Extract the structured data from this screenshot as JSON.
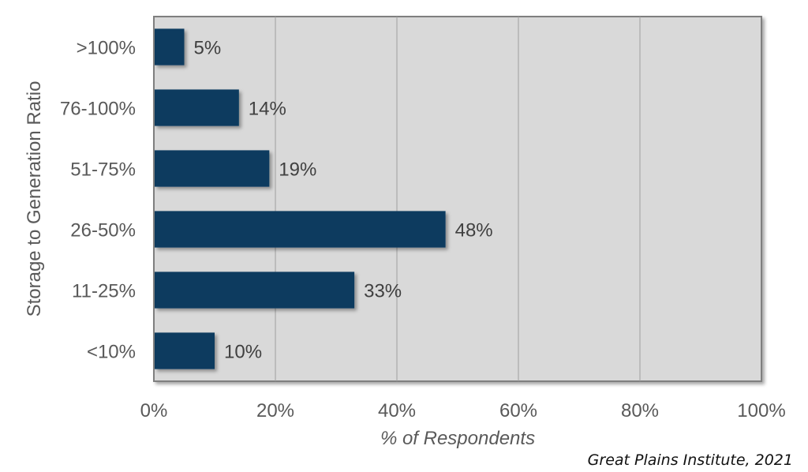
{
  "chart_data": {
    "type": "bar",
    "orientation": "horizontal",
    "categories": [
      ">100%",
      "76-100%",
      "51-75%",
      "26-50%",
      "11-25%",
      "<10%"
    ],
    "values": [
      5,
      14,
      19,
      48,
      33,
      10
    ],
    "data_labels": [
      "5%",
      "14%",
      "19%",
      "48%",
      "33%",
      "10%"
    ],
    "xlabel": "% of Respondents",
    "ylabel": "Storage to Generation Ratio",
    "xlim": [
      0,
      100
    ],
    "xticks": [
      0,
      20,
      40,
      60,
      80,
      100
    ],
    "xtick_labels": [
      "0%",
      "20%",
      "40%",
      "60%",
      "80%",
      "100%"
    ],
    "grid": "vertical",
    "bar_color": "#0b3a5e",
    "plot_background": "#d9d9d9"
  },
  "source_note": "Great Plains Institute, 2021"
}
